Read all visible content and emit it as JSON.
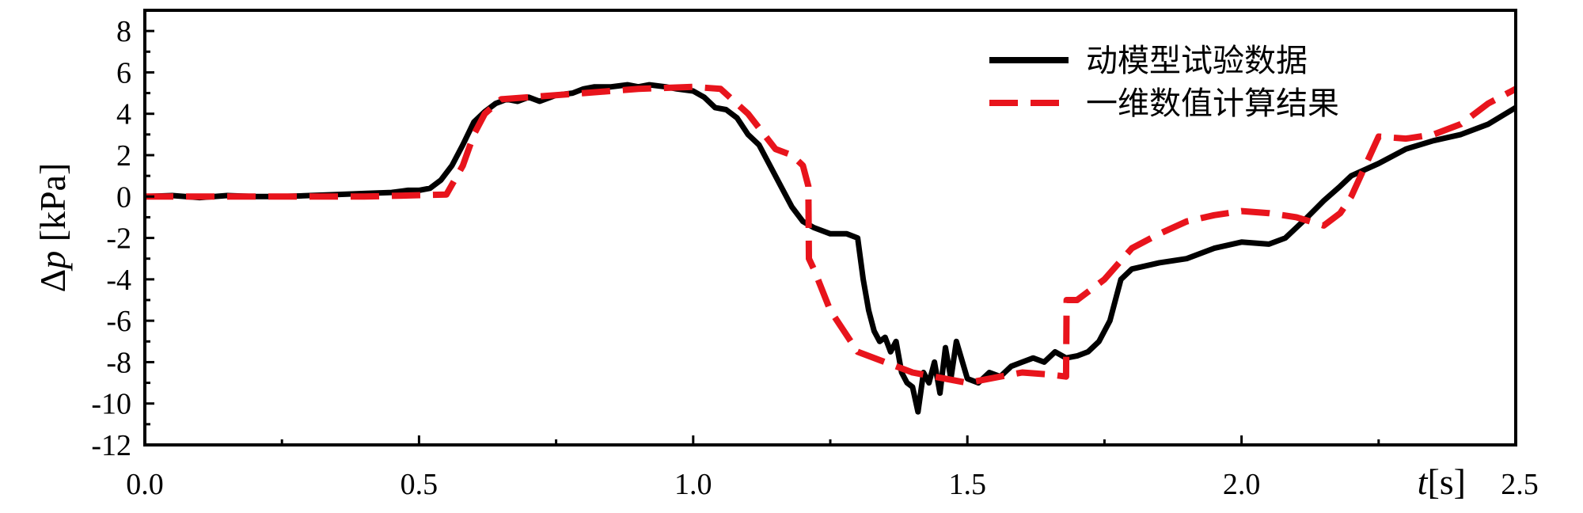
{
  "chart_data": {
    "type": "line",
    "title": "",
    "xlabel": "t[s]",
    "xlabel_var": "t",
    "xlabel_unit": "[s]",
    "ylabel": "Δp [kPa]",
    "ylabel_delta": "Δ",
    "ylabel_var": "p",
    "ylabel_unit": " [kPa]",
    "xlim": [
      0,
      2.5
    ],
    "ylim": [
      -12,
      9
    ],
    "xticks": [
      0,
      0.5,
      1.0,
      1.5,
      2.0,
      2.5
    ],
    "xtick_labels": [
      "0.0",
      "0.5",
      "1.0",
      "1.5",
      "2.0",
      "2.5"
    ],
    "yticks": [
      -12,
      -10,
      -8,
      -6,
      -4,
      -2,
      0,
      2,
      4,
      6,
      8
    ],
    "ytick_labels": [
      "-12",
      "-10",
      "-8",
      "-6",
      "-4",
      "-2",
      "0",
      "2",
      "4",
      "6",
      "8"
    ],
    "grid": false,
    "legend_position": "top-right",
    "series": [
      {
        "name": "动模型试验数据",
        "color": "#000000",
        "style": "solid",
        "x": [
          0,
          0.05,
          0.1,
          0.15,
          0.2,
          0.25,
          0.3,
          0.35,
          0.4,
          0.45,
          0.48,
          0.5,
          0.52,
          0.54,
          0.56,
          0.58,
          0.6,
          0.62,
          0.64,
          0.66,
          0.68,
          0.7,
          0.72,
          0.75,
          0.78,
          0.8,
          0.82,
          0.85,
          0.88,
          0.9,
          0.92,
          0.95,
          0.97,
          1.0,
          1.02,
          1.04,
          1.06,
          1.08,
          1.1,
          1.12,
          1.14,
          1.16,
          1.18,
          1.2,
          1.22,
          1.25,
          1.28,
          1.3,
          1.31,
          1.32,
          1.33,
          1.34,
          1.35,
          1.36,
          1.37,
          1.38,
          1.39,
          1.4,
          1.41,
          1.42,
          1.43,
          1.44,
          1.45,
          1.46,
          1.47,
          1.48,
          1.5,
          1.52,
          1.54,
          1.56,
          1.58,
          1.6,
          1.62,
          1.64,
          1.66,
          1.68,
          1.7,
          1.72,
          1.74,
          1.76,
          1.78,
          1.8,
          1.85,
          1.9,
          1.95,
          2.0,
          2.05,
          2.08,
          2.1,
          2.12,
          2.15,
          2.18,
          2.2,
          2.25,
          2.3,
          2.35,
          2.4,
          2.45,
          2.5
        ],
        "y": [
          0,
          0.05,
          -0.05,
          0.05,
          0,
          0,
          0.05,
          0.1,
          0.15,
          0.2,
          0.3,
          0.3,
          0.4,
          0.8,
          1.5,
          2.5,
          3.6,
          4.1,
          4.5,
          4.7,
          4.6,
          4.8,
          4.6,
          4.9,
          5.0,
          5.2,
          5.3,
          5.3,
          5.4,
          5.3,
          5.4,
          5.3,
          5.2,
          5.1,
          4.8,
          4.3,
          4.2,
          3.8,
          3.0,
          2.5,
          1.5,
          0.5,
          -0.5,
          -1.2,
          -1.5,
          -1.8,
          -1.8,
          -2.0,
          -4.0,
          -5.5,
          -6.5,
          -7.0,
          -6.8,
          -7.5,
          -7.0,
          -8.5,
          -9.0,
          -9.2,
          -10.4,
          -8.5,
          -9.0,
          -8.0,
          -9.5,
          -7.3,
          -8.8,
          -7.0,
          -8.8,
          -9.0,
          -8.5,
          -8.7,
          -8.2,
          -8.0,
          -7.8,
          -8.0,
          -7.5,
          -7.8,
          -7.7,
          -7.5,
          -7.0,
          -6.0,
          -4.0,
          -3.5,
          -3.2,
          -3.0,
          -2.5,
          -2.2,
          -2.3,
          -2.0,
          -1.5,
          -1.0,
          -0.2,
          0.5,
          1.0,
          1.6,
          2.3,
          2.7,
          3.0,
          3.5,
          4.3
        ]
      },
      {
        "name": "一维数值计算结果",
        "color": "#e8141c",
        "style": "dashed",
        "x": [
          0,
          0.2,
          0.4,
          0.55,
          0.58,
          0.6,
          0.62,
          0.65,
          0.7,
          0.8,
          0.9,
          1.0,
          1.05,
          1.1,
          1.15,
          1.18,
          1.2,
          1.21,
          1.211,
          1.22,
          1.25,
          1.3,
          1.35,
          1.4,
          1.5,
          1.6,
          1.65,
          1.68,
          1.681,
          1.7,
          1.75,
          1.8,
          1.85,
          1.9,
          1.95,
          2.0,
          2.05,
          2.1,
          2.15,
          2.18,
          2.2,
          2.25,
          2.3,
          2.35,
          2.4,
          2.45,
          2.5
        ],
        "y": [
          0,
          0,
          0,
          0.1,
          1.5,
          3.0,
          4.0,
          4.7,
          4.8,
          5.0,
          5.2,
          5.3,
          5.2,
          4.0,
          2.3,
          2.0,
          1.5,
          0.5,
          -3.0,
          -3.5,
          -5.5,
          -7.5,
          -8.0,
          -8.5,
          -9.0,
          -8.5,
          -8.6,
          -8.7,
          -5.0,
          -5.0,
          -4.0,
          -2.5,
          -1.8,
          -1.2,
          -0.9,
          -0.7,
          -0.8,
          -1.0,
          -1.4,
          -0.8,
          0,
          2.9,
          2.8,
          3.0,
          3.5,
          4.5,
          5.2
        ]
      }
    ]
  }
}
